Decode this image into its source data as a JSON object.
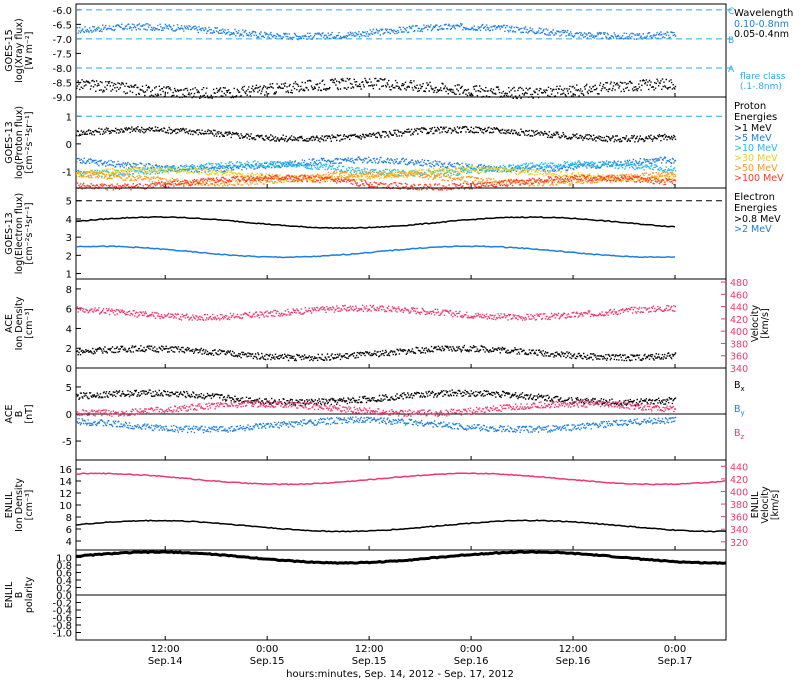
{
  "colors": {
    "black": "#000000",
    "blue": "#1e7fe0",
    "cyan": "#22bbee",
    "green": "#22cc33",
    "yellow": "#e8d020",
    "orange": "#ff9a20",
    "red": "#ff3b2a",
    "pink": "#f0386e",
    "dashed_cyan": "#28aaf0"
  },
  "xaxis": {
    "label": "hours:minutes, Sep. 14, 2012 - Sep. 17, 2012",
    "ticks": [
      {
        "hours": 12,
        "time": "12:00",
        "date": "Sep.14"
      },
      {
        "hours": 24,
        "time": "0:00",
        "date": "Sep.15"
      },
      {
        "hours": 36,
        "time": "12:00",
        "date": "Sep.15"
      },
      {
        "hours": 48,
        "time": "0:00",
        "date": "Sep.16"
      },
      {
        "hours": 60,
        "time": "12:00",
        "date": "Sep.16"
      },
      {
        "hours": 72,
        "time": "0:00",
        "date": "Sep.17"
      }
    ],
    "range_hours": [
      1.5,
      78
    ]
  },
  "chart_data": [
    {
      "type": "scatter",
      "panel": "goes15-xray",
      "ylabel": [
        "GOES-15",
        "log(Xray flux)",
        "[W m⁻²]"
      ],
      "ylim": [
        -9.0,
        -5.8
      ],
      "yticks": [
        "-6.0",
        "-6.5",
        "-7.0",
        "-7.5",
        "-8.0",
        "-8.5",
        "-9.0"
      ],
      "legend_title": "Wavelength",
      "series": [
        {
          "name": "0.10-0.8nm",
          "color_key": "blue",
          "level": -6.75
        },
        {
          "name": "0.05-0.4nm",
          "color_key": "black",
          "level": -8.7
        }
      ],
      "flare_classes": [
        {
          "label": "C",
          "value": -6.0
        },
        {
          "label": "B",
          "value": -7.0
        },
        {
          "label": "A",
          "value": -8.0
        }
      ],
      "annotation": [
        "flare class",
        "(.1-.8nm)"
      ]
    },
    {
      "type": "scatter",
      "panel": "goes13-proton",
      "ylabel": [
        "GOES-13",
        "log(Proton flux)",
        "[cm⁻²s⁻¹sr⁻¹]"
      ],
      "ylim": [
        -1.6,
        1.7
      ],
      "yticks": [
        "1",
        "0",
        "-1"
      ],
      "legend_title": [
        "Proton",
        "Energies"
      ],
      "series": [
        {
          "name": ">1 MeV",
          "color_key": "black",
          "level": 0.35
        },
        {
          "name": ">5 MeV",
          "color_key": "blue",
          "level": -0.75
        },
        {
          "name": ">10 MeV",
          "color_key": "cyan",
          "level": -0.9
        },
        {
          "name": ">30 MeV",
          "color_key": "yellow",
          "level": -1.1
        },
        {
          "name": ">50 MeV",
          "color_key": "orange",
          "level": -1.25
        },
        {
          "name": ">100 MeV",
          "color_key": "red",
          "level": -1.4
        }
      ],
      "threshold": 1
    },
    {
      "type": "line",
      "panel": "goes13-electron",
      "ylabel": [
        "GOES-13",
        "log(Electron flux)",
        "[cm⁻²s⁻¹sr⁻¹]"
      ],
      "ylim": [
        0.7,
        5.7
      ],
      "yticks": [
        "5",
        "4",
        "3",
        "2",
        "1"
      ],
      "legend_title": [
        "Electron",
        "Energies"
      ],
      "series": [
        {
          "name": ">0.8 MeV",
          "color_key": "black",
          "level": 3.8
        },
        {
          "name": ">2 MeV",
          "color_key": "blue",
          "level": 2.2
        }
      ],
      "threshold": 5
    },
    {
      "type": "scatter",
      "panel": "ace-density-velocity",
      "ylabel": [
        "ACE",
        "Ion Density",
        "[cm⁻³]"
      ],
      "ylim": [
        0,
        9
      ],
      "yticks": [
        "8",
        "6",
        "4",
        "2",
        "0"
      ],
      "y2label": [
        "Velocity",
        "[km/s]"
      ],
      "y2lim": [
        340,
        485
      ],
      "y2ticks": [
        "480",
        "460",
        "440",
        "420",
        "400",
        "380",
        "360",
        "340"
      ],
      "series": [
        {
          "name": "Ion Density",
          "color_key": "black",
          "level": 1.5
        },
        {
          "name": "Velocity",
          "color_key": "pink",
          "level": 430
        }
      ]
    },
    {
      "type": "scatter",
      "panel": "ace-b",
      "ylabel": [
        "ACE",
        "B",
        "[nT]"
      ],
      "ylim": [
        -8.5,
        8.5
      ],
      "yticks": [
        "5",
        "0",
        "-5"
      ],
      "series": [
        {
          "name": "B",
          "sub": "x",
          "color_key": "black",
          "level": 3
        },
        {
          "name": "B",
          "sub": "y",
          "color_key": "blue",
          "level": -2
        },
        {
          "name": "B",
          "sub": "z",
          "color_key": "pink",
          "level": 1
        }
      ]
    },
    {
      "type": "line",
      "panel": "enlil-density-velocity",
      "ylabel": [
        "ENLIL",
        "Ion Density",
        "[cm⁻³]"
      ],
      "ylim": [
        2.5,
        17.5
      ],
      "yticks": [
        "16",
        "14",
        "12",
        "10",
        "8",
        "6",
        "4"
      ],
      "y2label": [
        "ENLIL",
        "Velocity",
        "[km/s]"
      ],
      "y2lim": [
        307,
        450
      ],
      "y2ticks": [
        "440",
        "420",
        "400",
        "380",
        "360",
        "340",
        "320"
      ],
      "series": [
        {
          "name": "Ion Density",
          "color_key": "black",
          "level": 6.5
        },
        {
          "name": "Velocity",
          "color_key": "pink",
          "level": 420
        }
      ]
    },
    {
      "type": "line",
      "panel": "enlil-polarity",
      "ylabel": [
        "ENLIL",
        "B",
        "polarity"
      ],
      "ylabel_sub": "r",
      "ylim": [
        -1.2,
        1.2
      ],
      "yticks": [
        "1.0",
        "0.8",
        "0.6",
        "0.4",
        "0.2",
        "0.0",
        "-0.2",
        "-0.4",
        "-0.6",
        "-0.8",
        "-1.0"
      ],
      "series": [
        {
          "name": "B polarity",
          "color_key": "black",
          "level": 1.0
        }
      ]
    }
  ]
}
